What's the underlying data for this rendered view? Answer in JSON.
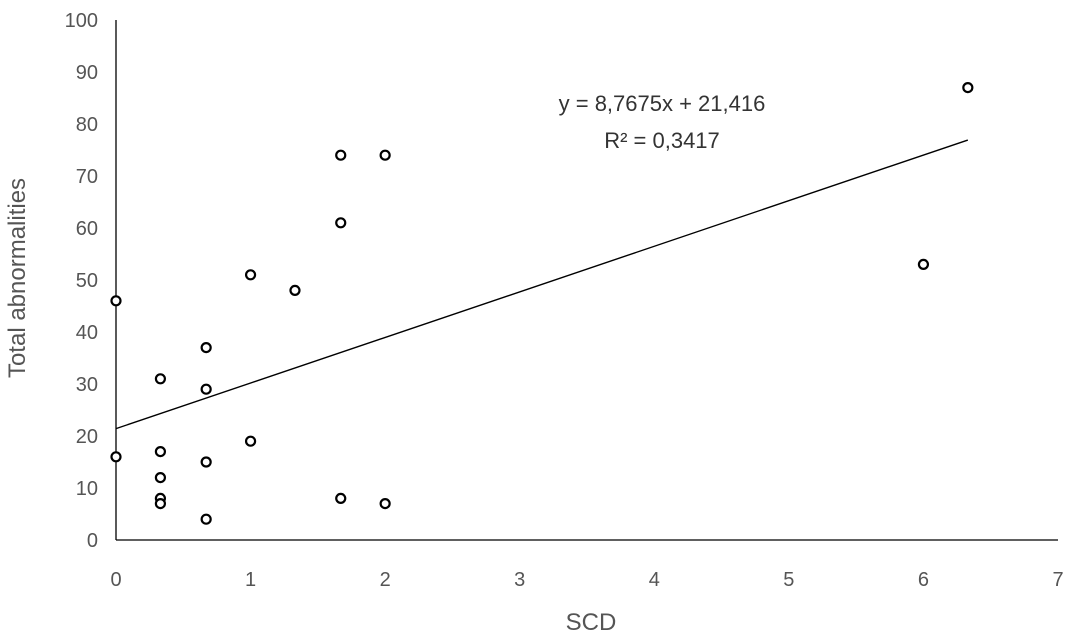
{
  "chart_data": {
    "type": "scatter",
    "title": "",
    "xlabel": "SCD",
    "ylabel": "Total abnormalities",
    "xlim": [
      0,
      7
    ],
    "ylim": [
      0,
      100
    ],
    "x_ticks": [
      "0",
      "1",
      "2",
      "3",
      "4",
      "5",
      "6",
      "7"
    ],
    "y_ticks": [
      "0",
      "10",
      "20",
      "30",
      "40",
      "50",
      "60",
      "70",
      "80",
      "90",
      "100"
    ],
    "grid": false,
    "legend": "none",
    "series": [
      {
        "points": [
          {
            "x": 0,
            "y": 46
          },
          {
            "x": 0,
            "y": 16
          },
          {
            "x": 0.33,
            "y": 31
          },
          {
            "x": 0.33,
            "y": 17
          },
          {
            "x": 0.33,
            "y": 12
          },
          {
            "x": 0.33,
            "y": 8
          },
          {
            "x": 0.33,
            "y": 7
          },
          {
            "x": 0.67,
            "y": 37
          },
          {
            "x": 0.67,
            "y": 29
          },
          {
            "x": 0.67,
            "y": 15
          },
          {
            "x": 0.67,
            "y": 4
          },
          {
            "x": 1,
            "y": 51
          },
          {
            "x": 1,
            "y": 19
          },
          {
            "x": 1.33,
            "y": 48
          },
          {
            "x": 1.67,
            "y": 74
          },
          {
            "x": 1.67,
            "y": 61
          },
          {
            "x": 1.67,
            "y": 8
          },
          {
            "x": 2,
            "y": 74
          },
          {
            "x": 2,
            "y": 7
          },
          {
            "x": 6,
            "y": 53
          },
          {
            "x": 6.33,
            "y": 87
          }
        ]
      }
    ],
    "trendline": {
      "type": "linear",
      "slope": 8.7675,
      "intercept": 21.416,
      "x_range": [
        0,
        6.33
      ]
    },
    "annotations": {
      "equation": "y = 8,7675x + 21,416",
      "r_squared": "R² = 0,3417"
    }
  }
}
